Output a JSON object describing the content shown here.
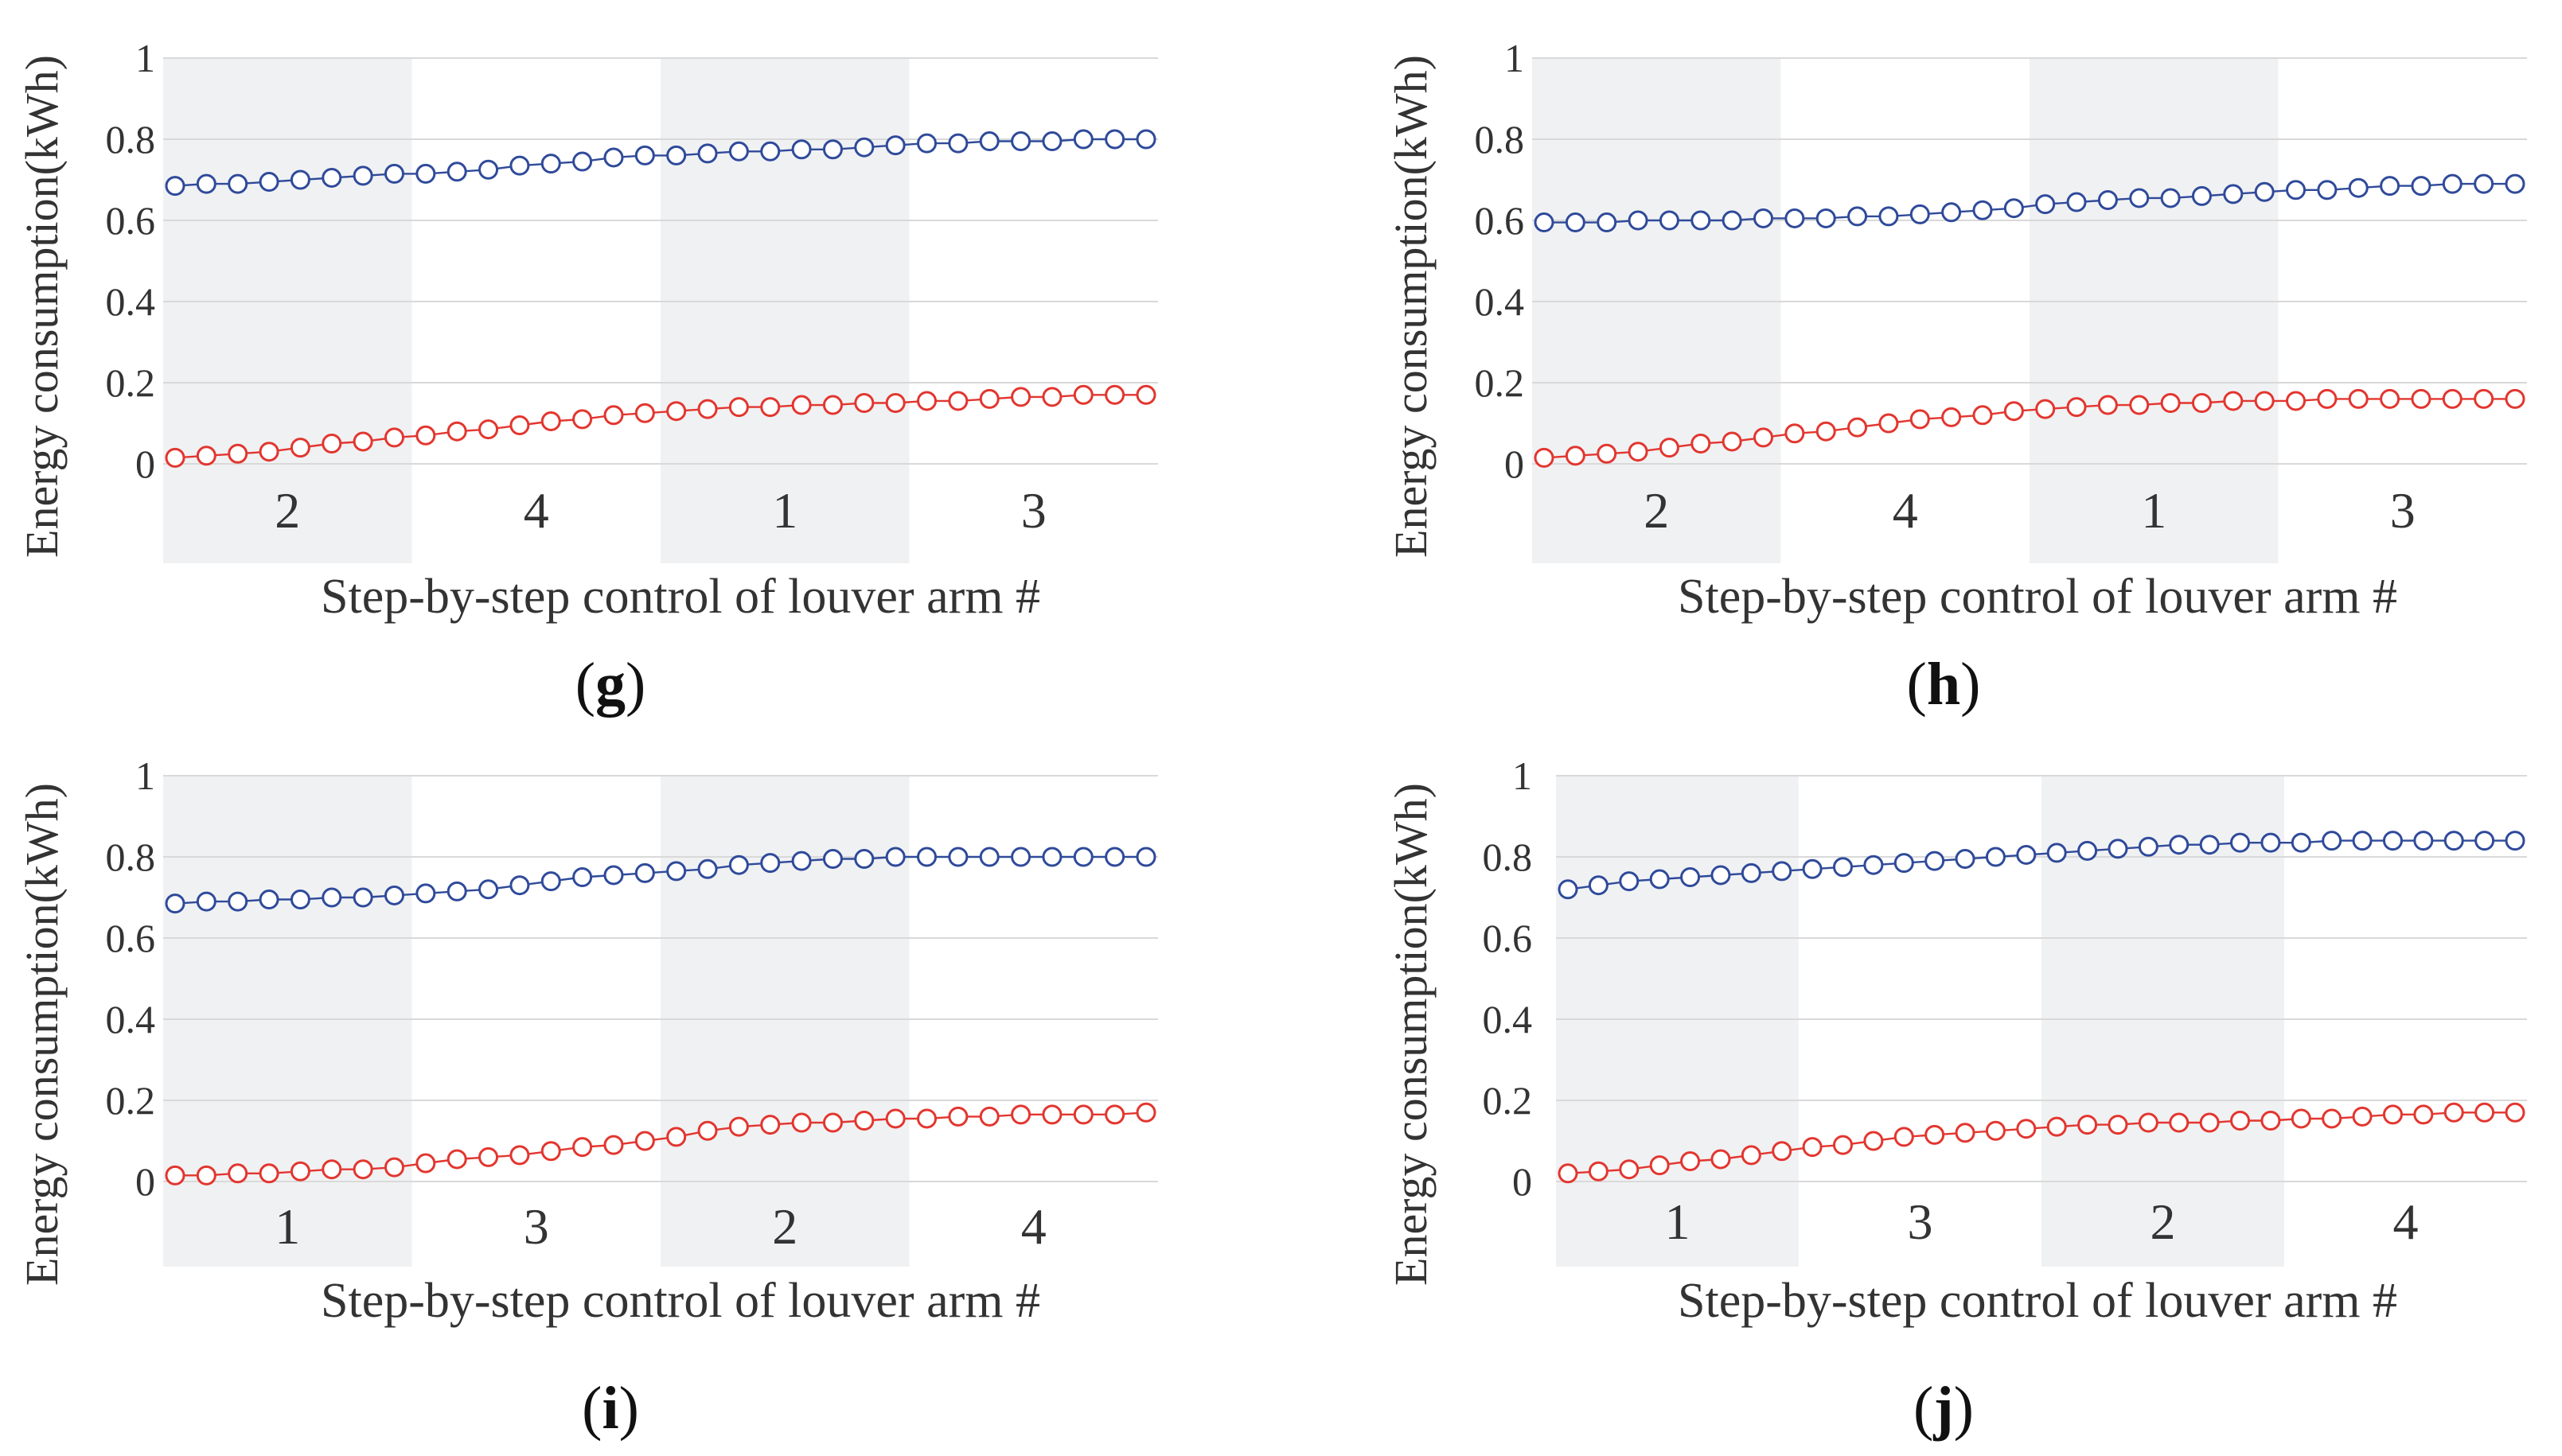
{
  "colors": {
    "series_upper": "#2f4a9a",
    "series_lower": "#e2362f",
    "band_shade": "#f0f1f3",
    "grid": "#d9d9d9"
  },
  "chart_data": [
    {
      "type": "line",
      "panel": "g",
      "ylabel": "Energy consumption(kWh)",
      "xlabel": "Step-by-step control of louver arm #",
      "ylim": [
        0,
        1
      ],
      "yticks": [
        "0",
        "0.2",
        "0.4",
        "0.6",
        "0.8",
        "1"
      ],
      "bands": [
        {
          "label": "2",
          "shaded": true
        },
        {
          "label": "4",
          "shaded": false
        },
        {
          "label": "1",
          "shaded": true
        },
        {
          "label": "3",
          "shaded": false
        }
      ],
      "x": [
        1,
        2,
        3,
        4,
        5,
        6,
        7,
        8,
        9,
        10,
        11,
        12,
        13,
        14,
        15,
        16,
        17,
        18,
        19,
        20,
        21,
        22,
        23,
        24,
        25,
        26,
        27,
        28,
        29,
        30,
        31,
        32
      ],
      "series": [
        {
          "name": "upper",
          "color": "#2f4a9a",
          "values": [
            0.685,
            0.69,
            0.69,
            0.695,
            0.7,
            0.705,
            0.71,
            0.715,
            0.715,
            0.72,
            0.725,
            0.735,
            0.74,
            0.745,
            0.755,
            0.76,
            0.76,
            0.765,
            0.77,
            0.77,
            0.775,
            0.775,
            0.78,
            0.785,
            0.79,
            0.79,
            0.795,
            0.795,
            0.795,
            0.8,
            0.8,
            0.8
          ]
        },
        {
          "name": "lower",
          "color": "#e2362f",
          "values": [
            0.015,
            0.02,
            0.025,
            0.03,
            0.04,
            0.05,
            0.055,
            0.065,
            0.07,
            0.08,
            0.085,
            0.095,
            0.105,
            0.11,
            0.12,
            0.125,
            0.13,
            0.135,
            0.14,
            0.14,
            0.145,
            0.145,
            0.15,
            0.15,
            0.155,
            0.155,
            0.16,
            0.165,
            0.165,
            0.17,
            0.17,
            0.17
          ]
        }
      ]
    },
    {
      "type": "line",
      "panel": "h",
      "ylabel": "Energy consumption(kWh)",
      "xlabel": "Step-by-step control of louver arm #",
      "ylim": [
        0,
        1
      ],
      "yticks": [
        "0",
        "0.2",
        "0.4",
        "0.6",
        "0.8",
        "1"
      ],
      "bands": [
        {
          "label": "2",
          "shaded": true
        },
        {
          "label": "4",
          "shaded": false
        },
        {
          "label": "1",
          "shaded": true
        },
        {
          "label": "3",
          "shaded": false
        }
      ],
      "x": [
        1,
        2,
        3,
        4,
        5,
        6,
        7,
        8,
        9,
        10,
        11,
        12,
        13,
        14,
        15,
        16,
        17,
        18,
        19,
        20,
        21,
        22,
        23,
        24,
        25,
        26,
        27,
        28,
        29,
        30,
        31,
        32
      ],
      "series": [
        {
          "name": "upper",
          "color": "#2f4a9a",
          "values": [
            0.595,
            0.595,
            0.595,
            0.6,
            0.6,
            0.6,
            0.6,
            0.605,
            0.605,
            0.605,
            0.61,
            0.61,
            0.615,
            0.62,
            0.625,
            0.63,
            0.64,
            0.645,
            0.65,
            0.655,
            0.655,
            0.66,
            0.665,
            0.67,
            0.675,
            0.675,
            0.68,
            0.685,
            0.685,
            0.69,
            0.69,
            0.69
          ]
        },
        {
          "name": "lower",
          "color": "#e2362f",
          "values": [
            0.015,
            0.02,
            0.025,
            0.03,
            0.04,
            0.05,
            0.055,
            0.065,
            0.075,
            0.08,
            0.09,
            0.1,
            0.11,
            0.115,
            0.12,
            0.13,
            0.135,
            0.14,
            0.145,
            0.145,
            0.15,
            0.15,
            0.155,
            0.155,
            0.155,
            0.16,
            0.16,
            0.16,
            0.16,
            0.16,
            0.16,
            0.16
          ]
        }
      ]
    },
    {
      "type": "line",
      "panel": "i",
      "ylabel": "Energy consumption(kWh)",
      "xlabel": "Step-by-step control of louver arm #",
      "ylim": [
        0,
        1
      ],
      "yticks": [
        "0",
        "0.2",
        "0.4",
        "0.6",
        "0.8",
        "1"
      ],
      "bands": [
        {
          "label": "1",
          "shaded": true
        },
        {
          "label": "3",
          "shaded": false
        },
        {
          "label": "2",
          "shaded": true
        },
        {
          "label": "4",
          "shaded": false
        }
      ],
      "x": [
        1,
        2,
        3,
        4,
        5,
        6,
        7,
        8,
        9,
        10,
        11,
        12,
        13,
        14,
        15,
        16,
        17,
        18,
        19,
        20,
        21,
        22,
        23,
        24,
        25,
        26,
        27,
        28,
        29,
        30,
        31,
        32
      ],
      "series": [
        {
          "name": "upper",
          "color": "#2f4a9a",
          "values": [
            0.685,
            0.69,
            0.69,
            0.695,
            0.695,
            0.7,
            0.7,
            0.705,
            0.71,
            0.715,
            0.72,
            0.73,
            0.74,
            0.75,
            0.755,
            0.76,
            0.765,
            0.77,
            0.78,
            0.785,
            0.79,
            0.795,
            0.795,
            0.8,
            0.8,
            0.8,
            0.8,
            0.8,
            0.8,
            0.8,
            0.8,
            0.8
          ]
        },
        {
          "name": "lower",
          "color": "#e2362f",
          "values": [
            0.015,
            0.015,
            0.02,
            0.02,
            0.025,
            0.03,
            0.03,
            0.035,
            0.045,
            0.055,
            0.06,
            0.065,
            0.075,
            0.085,
            0.09,
            0.1,
            0.11,
            0.125,
            0.135,
            0.14,
            0.145,
            0.145,
            0.15,
            0.155,
            0.155,
            0.16,
            0.16,
            0.165,
            0.165,
            0.165,
            0.165,
            0.17
          ]
        }
      ]
    },
    {
      "type": "line",
      "panel": "j",
      "ylabel": "Energy consumption(kWh)",
      "xlabel": "Step-by-step control of louver arm #",
      "ylim": [
        0,
        1
      ],
      "yticks": [
        "0",
        "0.2",
        "0.4",
        "0.6",
        "0.8",
        "1"
      ],
      "bands": [
        {
          "label": "1",
          "shaded": true
        },
        {
          "label": "3",
          "shaded": false
        },
        {
          "label": "2",
          "shaded": true
        },
        {
          "label": "4",
          "shaded": false
        }
      ],
      "x": [
        1,
        2,
        3,
        4,
        5,
        6,
        7,
        8,
        9,
        10,
        11,
        12,
        13,
        14,
        15,
        16,
        17,
        18,
        19,
        20,
        21,
        22,
        23,
        24,
        25,
        26,
        27,
        28,
        29,
        30,
        31,
        32
      ],
      "series": [
        {
          "name": "upper",
          "color": "#2f4a9a",
          "values": [
            0.72,
            0.73,
            0.74,
            0.745,
            0.75,
            0.755,
            0.76,
            0.765,
            0.77,
            0.775,
            0.78,
            0.785,
            0.79,
            0.795,
            0.8,
            0.805,
            0.81,
            0.815,
            0.82,
            0.825,
            0.83,
            0.83,
            0.835,
            0.835,
            0.835,
            0.84,
            0.84,
            0.84,
            0.84,
            0.84,
            0.84,
            0.84
          ]
        },
        {
          "name": "lower",
          "color": "#e2362f",
          "values": [
            0.02,
            0.025,
            0.03,
            0.04,
            0.05,
            0.055,
            0.065,
            0.075,
            0.085,
            0.09,
            0.1,
            0.11,
            0.115,
            0.12,
            0.125,
            0.13,
            0.135,
            0.14,
            0.14,
            0.145,
            0.145,
            0.145,
            0.15,
            0.15,
            0.155,
            0.155,
            0.16,
            0.165,
            0.165,
            0.17,
            0.17,
            0.17
          ]
        }
      ]
    }
  ]
}
